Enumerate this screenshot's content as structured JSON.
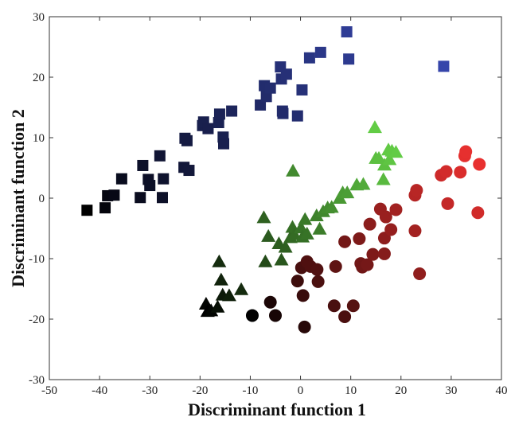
{
  "chart_data": {
    "type": "scatter",
    "title": "",
    "xlabel": "Discriminant function 1",
    "ylabel": "Discriminant function 2",
    "xlim": [
      -50,
      40
    ],
    "ylim": [
      -30,
      30
    ],
    "xticks": [
      -50,
      -40,
      -30,
      -20,
      -10,
      0,
      10,
      20,
      30,
      40
    ],
    "yticks": [
      -30,
      -20,
      -10,
      0,
      10,
      20,
      30
    ],
    "xtick_labels": [
      "-50",
      "-40",
      "-30",
      "-20",
      "-10",
      "0",
      "10",
      "20",
      "30",
      "40"
    ],
    "ytick_labels": [
      "-30",
      "-20",
      "-10",
      "0",
      "10",
      "20",
      "30"
    ],
    "grid": false,
    "legend": "none",
    "series": [
      {
        "marker": "square",
        "color_start": "#000000",
        "color_end": "#3645aa",
        "points": [
          [
            -42.5,
            -2.0
          ],
          [
            -38.9,
            -1.6
          ],
          [
            -38.4,
            0.4
          ],
          [
            -37.1,
            0.5
          ],
          [
            -35.6,
            3.2
          ],
          [
            -31.9,
            0.1
          ],
          [
            -31.4,
            5.4
          ],
          [
            -30.3,
            3.1
          ],
          [
            -30.0,
            2.1
          ],
          [
            -27.5,
            0.1
          ],
          [
            -28.0,
            7.0
          ],
          [
            -27.3,
            3.2
          ],
          [
            -23.2,
            5.1
          ],
          [
            -22.6,
            9.5
          ],
          [
            -22.2,
            4.6
          ],
          [
            -23.0,
            9.9
          ],
          [
            -19.5,
            12.0
          ],
          [
            -19.3,
            12.6
          ],
          [
            -18.4,
            11.5
          ],
          [
            -16.3,
            12.5
          ],
          [
            -16.1,
            13.9
          ],
          [
            -15.4,
            10.1
          ],
          [
            -15.3,
            9.0
          ],
          [
            -13.7,
            14.4
          ],
          [
            -8.0,
            15.4
          ],
          [
            -7.2,
            18.6
          ],
          [
            -6.8,
            16.8
          ],
          [
            -6.0,
            18.2
          ],
          [
            -3.6,
            14.4
          ],
          [
            -3.5,
            14.0
          ],
          [
            -3.8,
            19.7
          ],
          [
            -2.8,
            20.5
          ],
          [
            -4.0,
            21.7
          ],
          [
            -0.6,
            13.6
          ],
          [
            0.3,
            17.9
          ],
          [
            1.8,
            23.2
          ],
          [
            4.0,
            24.1
          ],
          [
            9.2,
            27.5
          ],
          [
            9.6,
            23.0
          ],
          [
            28.5,
            21.8
          ]
        ]
      },
      {
        "marker": "triangle",
        "color_start": "#000000",
        "color_end": "#62cc45",
        "points": [
          [
            -1.5,
            4.5
          ],
          [
            -16.2,
            -10.5
          ],
          [
            -15.8,
            -13.5
          ],
          [
            -18.8,
            -17.5
          ],
          [
            -18.5,
            -18.7
          ],
          [
            -17.8,
            -18.6
          ],
          [
            -16.5,
            -18.0
          ],
          [
            -15.5,
            -16.0
          ],
          [
            -14.2,
            -16.1
          ],
          [
            -11.8,
            -15.1
          ],
          [
            -7.3,
            -3.2
          ],
          [
            -6.4,
            -6.3
          ],
          [
            -7.0,
            -10.5
          ],
          [
            -3.8,
            -10.2
          ],
          [
            -4.3,
            -7.5
          ],
          [
            -3.0,
            -8.1
          ],
          [
            -2.0,
            -6.5
          ],
          [
            -1.6,
            -4.8
          ],
          [
            -1.2,
            -6.0
          ],
          [
            0.1,
            -4.9
          ],
          [
            0.4,
            -6.4
          ],
          [
            0.9,
            -3.5
          ],
          [
            1.3,
            -5.9
          ],
          [
            3.2,
            -2.9
          ],
          [
            3.8,
            -5.1
          ],
          [
            4.5,
            -2.2
          ],
          [
            5.4,
            -1.6
          ],
          [
            6.2,
            -1.5
          ],
          [
            7.8,
            0.0
          ],
          [
            8.4,
            0.9
          ],
          [
            9.3,
            0.9
          ],
          [
            11.2,
            2.2
          ],
          [
            12.5,
            2.3
          ],
          [
            14.8,
            11.7
          ],
          [
            15.0,
            6.6
          ],
          [
            15.6,
            6.6
          ],
          [
            16.5,
            3.1
          ],
          [
            16.7,
            5.5
          ],
          [
            17.7,
            6.4
          ],
          [
            17.5,
            8.0
          ],
          [
            18.2,
            7.8
          ],
          [
            19.0,
            7.6
          ]
        ]
      },
      {
        "marker": "circle",
        "color_start": "#000000",
        "color_end": "#e8302f",
        "points": [
          [
            -9.6,
            -19.4
          ],
          [
            -6.0,
            -17.2
          ],
          [
            -5.0,
            -19.4
          ],
          [
            -0.6,
            -13.7
          ],
          [
            0.2,
            -11.5
          ],
          [
            0.5,
            -16.1
          ],
          [
            1.3,
            -10.5
          ],
          [
            2.0,
            -11.3
          ],
          [
            3.3,
            -11.8
          ],
          [
            3.5,
            -13.8
          ],
          [
            0.8,
            -21.3
          ],
          [
            6.7,
            -17.8
          ],
          [
            8.8,
            -19.6
          ],
          [
            7.0,
            -11.3
          ],
          [
            8.8,
            -7.2
          ],
          [
            10.5,
            -17.8
          ],
          [
            11.7,
            -6.7
          ],
          [
            12.0,
            -10.8
          ],
          [
            12.3,
            -11.4
          ],
          [
            13.3,
            -11.0
          ],
          [
            13.8,
            -4.3
          ],
          [
            14.4,
            -9.3
          ],
          [
            15.9,
            -1.8
          ],
          [
            16.7,
            -9.2
          ],
          [
            16.7,
            -6.6
          ],
          [
            17.0,
            -3.1
          ],
          [
            18.0,
            -5.2
          ],
          [
            19.0,
            -1.9
          ],
          [
            22.8,
            -5.4
          ],
          [
            22.8,
            0.5
          ],
          [
            23.1,
            1.3
          ],
          [
            23.7,
            -12.5
          ],
          [
            28.0,
            3.8
          ],
          [
            29.0,
            4.4
          ],
          [
            29.3,
            -0.9
          ],
          [
            31.8,
            4.3
          ],
          [
            32.7,
            7.0
          ],
          [
            32.9,
            7.7
          ],
          [
            35.3,
            -2.4
          ],
          [
            35.6,
            5.6
          ]
        ]
      }
    ]
  }
}
